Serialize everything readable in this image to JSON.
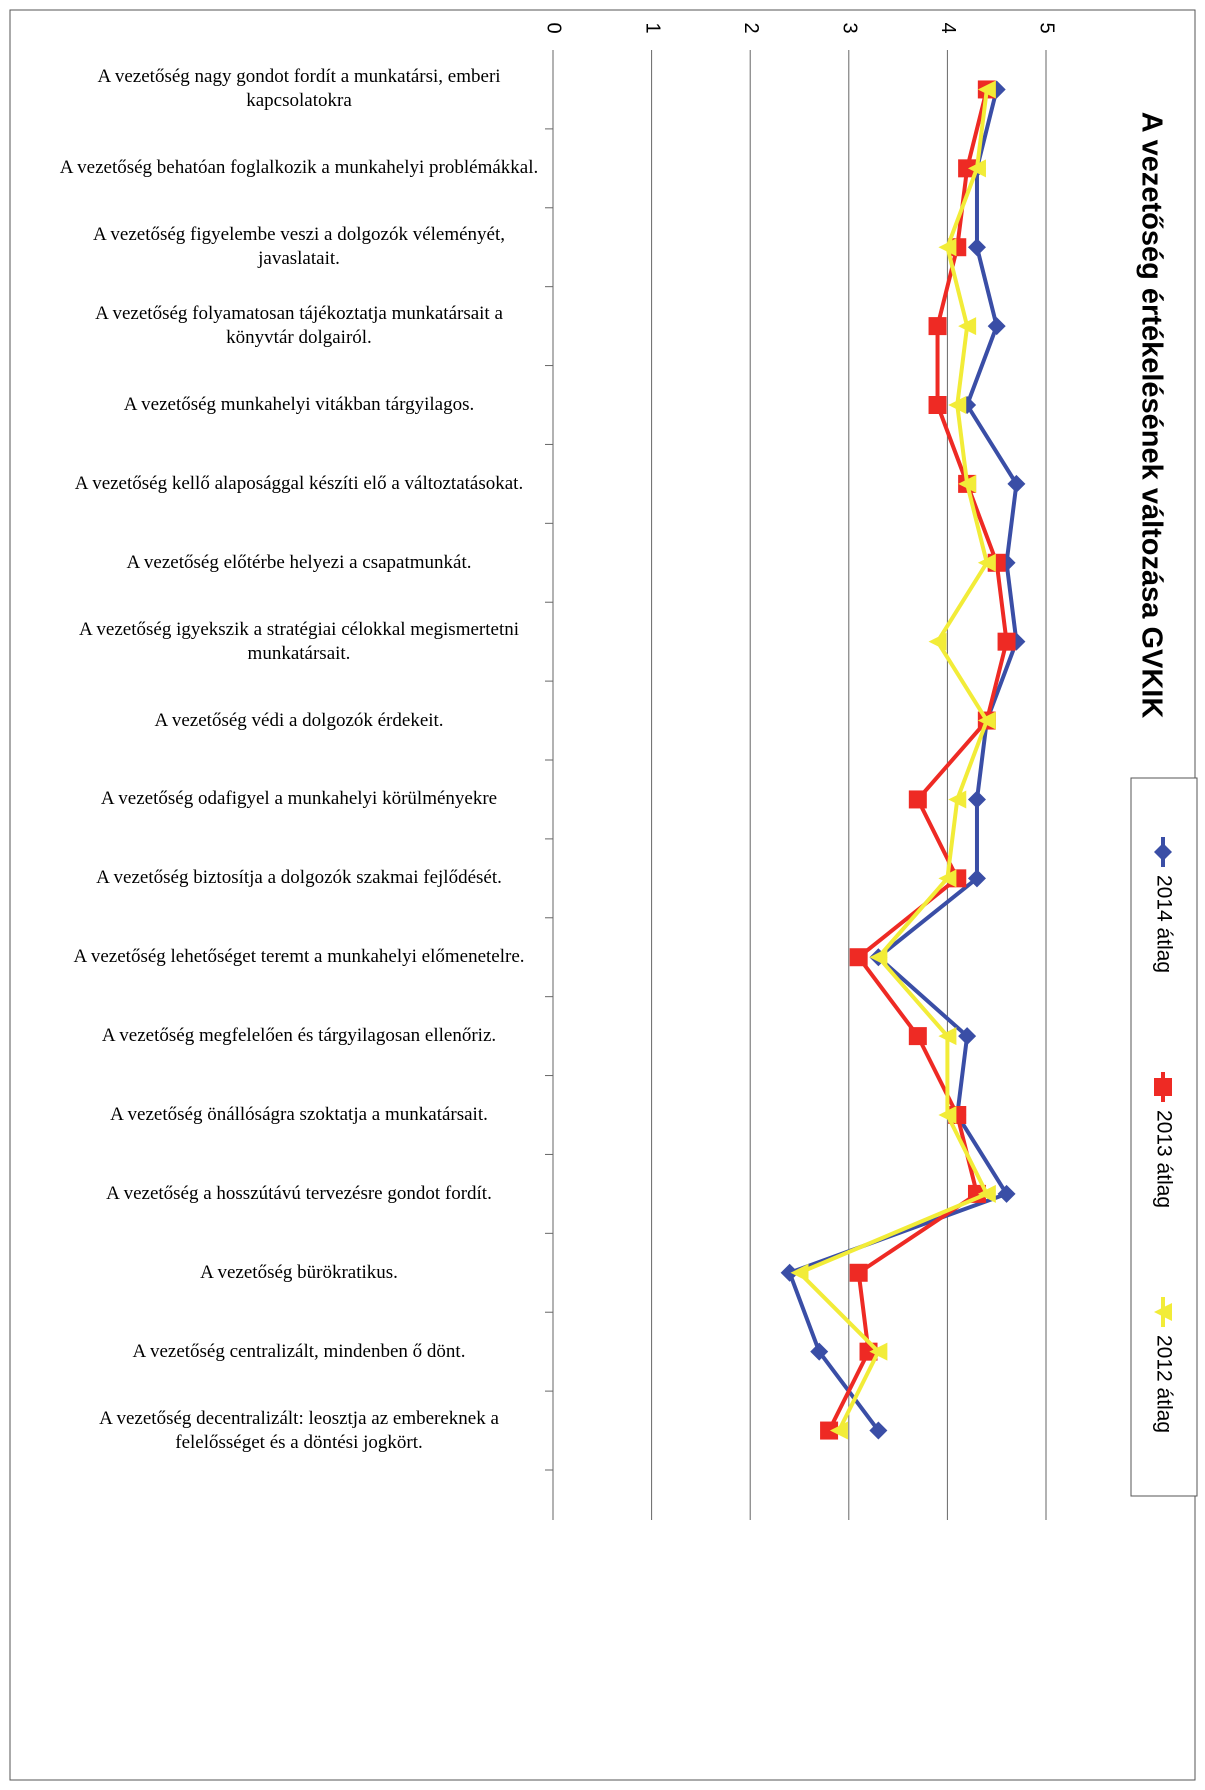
{
  "chart_data": {
    "type": "line",
    "title": "A vezetőség értékelésének változása GVKIK",
    "categories": [
      "A vezetőség nagy gondot fordít a munkatársi, emberi kapcsolatokra",
      "A vezetőség behatóan foglalkozik a munkahelyi problémákkal.",
      "A vezetőség figyelembe veszi a dolgozók véleményét, javaslatait.",
      "A vezetőség folyamatosan tájékoztatja munkatársait a könyvtár dolgairól.",
      "A vezetőség munkahelyi vitákban tárgyilagos.",
      "A vezetőség kellő alaposággal készíti elő a változtatásokat.",
      "A vezetőség előtérbe helyezi a csapatmunkát.",
      "A vezetőség igyekszik a stratégiai célokkal megismertetni munkatársait.",
      "A vezetőség védi a dolgozók érdekeit.",
      "A vezetőség odafigyel a munkahelyi körülményekre",
      "A vezetőség biztosítja a dolgozók szakmai fejlődését.",
      "A vezetőség lehetőséget teremt a munkahelyi előmenetelre.",
      "A vezetőség megfelelően és tárgyilagosan ellenőriz.",
      "A vezetőség önállóságra szoktatja a munkatársait.",
      "A vezetőség a hosszútávú tervezésre gondot fordít.",
      "A vezetőség bürökratikus.",
      "A vezetőség centralizált, mindenben ő dönt.",
      "A vezetőség decentralizált: leosztja az embereknek a felelősséget és a döntési jogkört."
    ],
    "series": [
      {
        "name": "2014 átlag",
        "color": "#3a4ea6",
        "marker": "diamond",
        "values": [
          4.5,
          4.3,
          4.3,
          4.5,
          4.2,
          4.7,
          4.6,
          4.7,
          4.4,
          4.3,
          4.3,
          3.3,
          4.2,
          4.1,
          4.6,
          2.4,
          2.7,
          3.3
        ]
      },
      {
        "name": "2013 átlag",
        "color": "#ee2a24",
        "marker": "square",
        "values": [
          4.4,
          4.2,
          4.1,
          3.9,
          3.9,
          4.2,
          4.5,
          4.6,
          4.4,
          3.7,
          4.1,
          3.1,
          3.7,
          4.1,
          4.3,
          3.1,
          3.2,
          2.8
        ]
      },
      {
        "name": "2012 átlag",
        "color": "#f2ec38",
        "marker": "triangle",
        "values": [
          4.4,
          4.3,
          4.0,
          4.2,
          4.1,
          4.2,
          4.4,
          3.9,
          4.4,
          4.1,
          4.0,
          3.3,
          4.0,
          4.0,
          4.4,
          2.5,
          3.3,
          2.9
        ]
      }
    ],
    "ylim": [
      0,
      5
    ],
    "yticks": [
      0,
      1,
      2,
      3,
      4,
      5
    ],
    "grid": true,
    "legend": "right"
  }
}
